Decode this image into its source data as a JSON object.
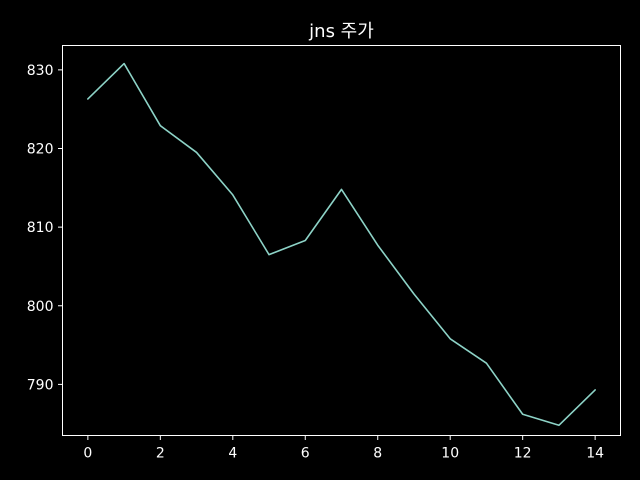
{
  "chart_data": {
    "type": "line",
    "title": "jns 주가",
    "xlabel": "",
    "ylabel": "",
    "x": [
      0,
      1,
      2,
      3,
      4,
      5,
      6,
      7,
      8,
      9,
      10,
      11,
      12,
      13,
      14
    ],
    "series": [
      {
        "values": [
          826.3,
          830.8,
          822.9,
          819.5,
          814.1,
          806.5,
          808.3,
          814.8,
          807.7,
          801.5,
          795.8,
          792.7,
          786.2,
          784.8,
          789.3
        ],
        "color": "#8dd3c7"
      }
    ],
    "xlim": [
      -0.7,
      14.7
    ],
    "ylim": [
      783.5,
      833.1
    ],
    "xticks": [
      0,
      2,
      4,
      6,
      8,
      10,
      12,
      14
    ],
    "yticks": [
      790,
      800,
      810,
      820,
      830
    ],
    "grid": false,
    "legend": "none",
    "background": "#000000",
    "axis_color": "#ffffff"
  }
}
